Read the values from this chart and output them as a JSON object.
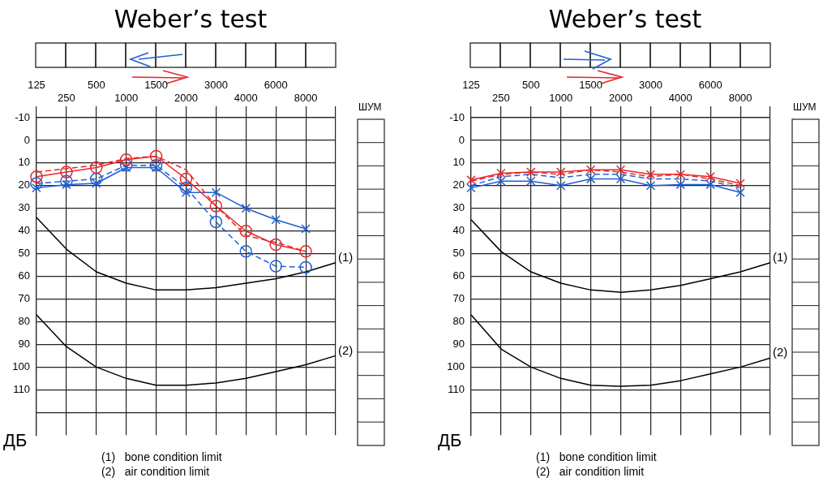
{
  "chart_data": [
    {
      "type": "line",
      "title": "Weber’s test",
      "ylabel": "ДБ",
      "categories": [
        "125",
        "250",
        "500",
        "1000",
        "1500",
        "2000",
        "3000",
        "4000",
        "6000",
        "8000",
        null
      ],
      "ylim": [
        130,
        -10
      ],
      "yticks": [
        -10,
        0,
        10,
        20,
        30,
        40,
        50,
        60,
        70,
        80,
        90,
        100,
        110,
        {
          "value": 120,
          "label": null
        }
      ],
      "grid": true,
      "legend": false,
      "annotations": [
        "(1)   bone condition limit",
        "(2)   air condition limit",
        "ШУМ"
      ],
      "series": [
        {
          "color": "#e8262a",
          "marker": "circle",
          "line_style": "solid",
          "values": [
            16,
            14,
            12,
            8.5,
            7,
            17,
            29,
            40,
            46,
            49,
            null
          ]
        },
        {
          "color": "#e8262a",
          "marker": "none",
          "line_style": "dashed",
          "values": [
            14,
            12.5,
            11,
            8,
            7,
            13,
            29,
            42,
            45,
            49,
            null
          ]
        },
        {
          "color": "#1f5fd6",
          "marker": "cross",
          "line_style": "solid",
          "values": [
            21,
            19.5,
            19,
            12,
            12,
            23,
            23,
            30,
            35,
            39,
            null
          ]
        },
        {
          "color": "#1f5fd6",
          "marker": "circle",
          "line_style": "dashed",
          "values": [
            19,
            18,
            17,
            11,
            11,
            21,
            36,
            49,
            55.5,
            56,
            null
          ]
        },
        {
          "name": "(1)",
          "color": "#000000",
          "marker": "none",
          "line_style": "solid",
          "values": [
            34,
            48,
            58,
            63,
            66,
            66,
            65,
            63,
            61,
            58,
            54
          ]
        },
        {
          "name": "(2)",
          "color": "#000000",
          "marker": "none",
          "line_style": "solid",
          "values": [
            77,
            91,
            100,
            105,
            108,
            108,
            107,
            105,
            102,
            99,
            95
          ]
        }
      ]
    },
    {
      "type": "line",
      "title": "Weber’s test",
      "ylabel": "ДБ",
      "categories": [
        "125",
        "250",
        "500",
        "1000",
        "1500",
        "2000",
        "3000",
        "4000",
        "6000",
        "8000",
        null
      ],
      "ylim": [
        130,
        -10
      ],
      "yticks": [
        -10,
        0,
        10,
        20,
        30,
        40,
        50,
        60,
        70,
        80,
        90,
        100,
        110,
        {
          "value": 120,
          "label": null
        }
      ],
      "grid": true,
      "legend": false,
      "annotations": [
        "(1)   bone condition limit",
        "(2)   air condition limit",
        "ШУМ"
      ],
      "series": [
        {
          "color": "#e8262a",
          "marker": "cross",
          "line_style": "solid",
          "values": [
            17.5,
            14.5,
            14,
            14,
            13,
            13,
            15,
            15,
            16,
            19,
            null
          ]
        },
        {
          "color": "#e8262a",
          "marker": "none",
          "line_style": "dashed",
          "values": [
            18,
            15,
            14,
            15,
            13,
            14,
            16,
            15,
            17,
            20,
            null
          ]
        },
        {
          "color": "#1f5fd6",
          "marker": "cross",
          "line_style": "solid",
          "values": [
            21,
            18,
            18,
            20,
            17,
            17,
            20,
            19.5,
            19.5,
            23,
            null
          ]
        },
        {
          "color": "#1f5fd6",
          "marker": "none",
          "line_style": "dashed",
          "values": [
            20,
            16,
            15,
            16.5,
            15,
            15,
            17,
            17,
            18,
            21,
            null
          ]
        },
        {
          "name": "(1)",
          "color": "#000000",
          "marker": "none",
          "line_style": "solid",
          "values": [
            35,
            49,
            58,
            63,
            66,
            67,
            66,
            64,
            61,
            58,
            54
          ]
        },
        {
          "name": "(2)",
          "color": "#000000",
          "marker": "none",
          "line_style": "solid",
          "values": [
            77,
            92,
            100,
            105,
            108,
            108.5,
            108,
            106,
            103,
            100,
            96
          ]
        }
      ]
    }
  ]
}
